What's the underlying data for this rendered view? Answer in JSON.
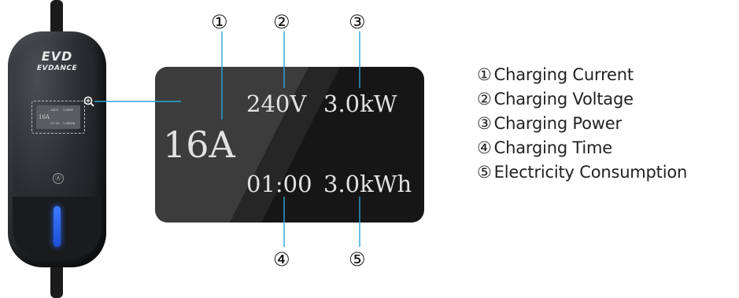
{
  "device": {
    "logo_main": "EVD",
    "logo_brand": "EVDANCE",
    "mini_screen": {
      "voltage": "240V",
      "power": "3.0kW",
      "current": "16A",
      "time": "01:00",
      "energy": "3.0kWh"
    },
    "button_label": "Ⓐ",
    "colors": {
      "led": "#2a66ff",
      "body": "#2a2c30"
    }
  },
  "display": {
    "current": "16A",
    "voltage": "240V",
    "power": "3.0kW",
    "time": "01:00",
    "energy": "3.0kWh"
  },
  "callouts": [
    "①",
    "②",
    "③",
    "④",
    "⑤"
  ],
  "legend": [
    {
      "num": "①",
      "label": "Charging Current"
    },
    {
      "num": "②",
      "label": "Charging Voltage"
    },
    {
      "num": "③",
      "label": "Charging Power"
    },
    {
      "num": "④",
      "label": "Charging Time"
    },
    {
      "num": "⑤",
      "label": "Electricity Consumption"
    }
  ],
  "colors": {
    "leader_line": "#2aa5d8",
    "display_bg": "#161616"
  }
}
